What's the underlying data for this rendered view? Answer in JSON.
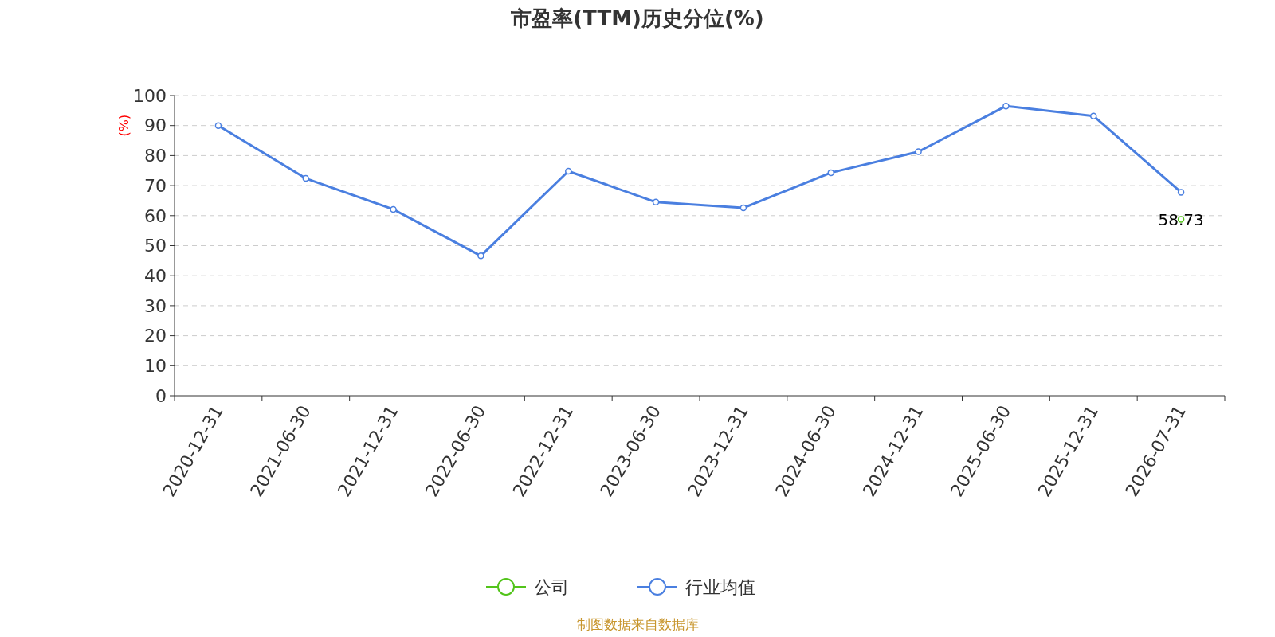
{
  "chart_data": {
    "type": "line",
    "title": "市盈率(TTM)历史分位(%)",
    "ylabel": "(%)",
    "categories": [
      "2020-12-31",
      "2021-06-30",
      "2021-12-31",
      "2022-06-30",
      "2022-12-31",
      "2023-06-30",
      "2023-12-31",
      "2024-06-30",
      "2024-12-31",
      "2025-06-30",
      "2025-12-31",
      "2026-07-31"
    ],
    "series": [
      {
        "name": "公司",
        "color": "#52c41a",
        "values": [
          null,
          null,
          null,
          null,
          null,
          null,
          null,
          null,
          null,
          null,
          null,
          58.73
        ],
        "value_labels": [
          null,
          null,
          null,
          null,
          null,
          null,
          null,
          null,
          null,
          null,
          null,
          "58.73"
        ]
      },
      {
        "name": "行业均值",
        "color": "#4a7fe0",
        "values": [
          90.0,
          72.4,
          62.1,
          46.6,
          74.8,
          64.5,
          62.6,
          74.3,
          81.3,
          96.5,
          93.2,
          67.8
        ]
      }
    ],
    "ylim": [
      0,
      100
    ],
    "yticks": [
      0,
      10,
      20,
      30,
      40,
      50,
      60,
      70,
      80,
      90,
      100
    ],
    "grid": "y",
    "legend": "bottom",
    "marker": "circle",
    "line_style": "solid",
    "annotations": [
      "制图数据来自数据库"
    ]
  }
}
